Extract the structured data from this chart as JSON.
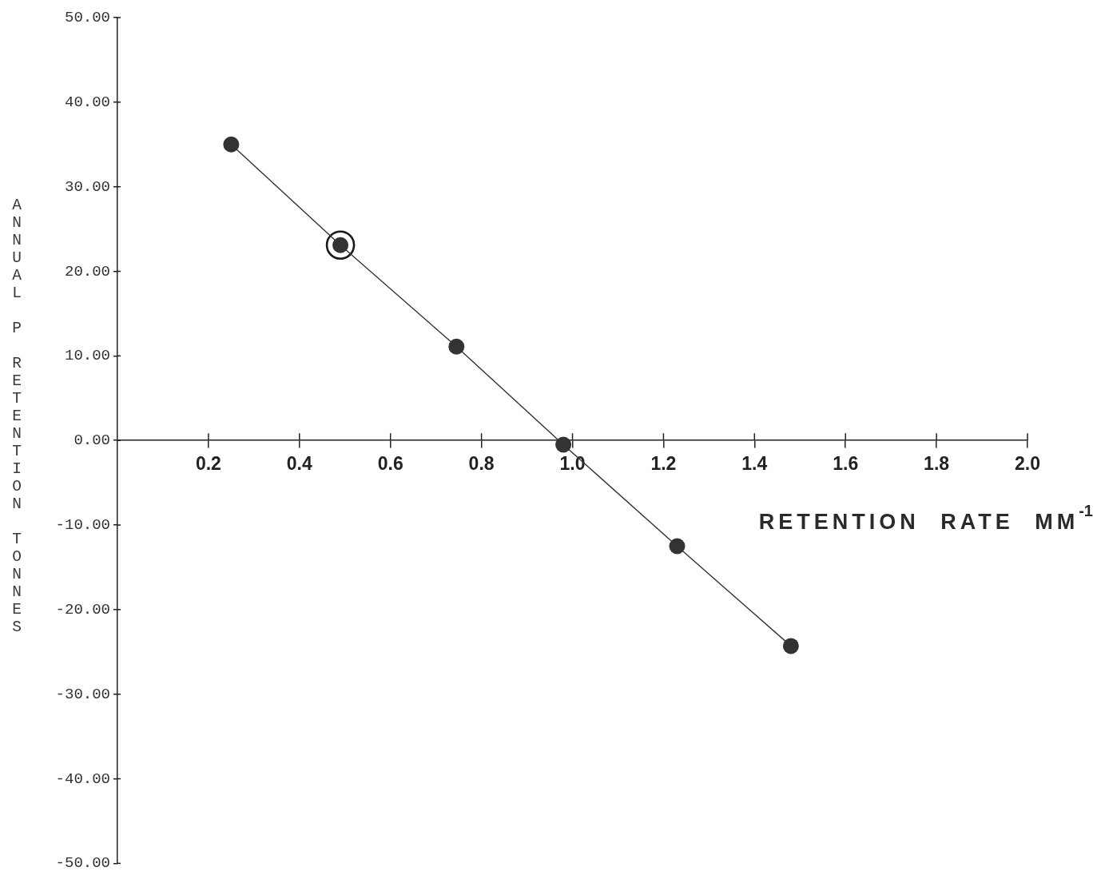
{
  "chart_data": {
    "type": "line",
    "xlabel": "RETENTION RATE MM$^{-1}$",
    "ylabel": "ANNUAL P RETENTION TONNES",
    "x": [
      0.25,
      0.49,
      0.745,
      0.98,
      1.23,
      1.48
    ],
    "series": [
      {
        "type": "line",
        "color": "#333333",
        "values": [
          35.0,
          23.1,
          11.1,
          -0.5,
          -12.5,
          -24.3
        ]
      },
      {
        "type": "scatter",
        "color": "#1a1a1a",
        "x": [
          0.49
        ],
        "values": [
          23.1
        ]
      }
    ],
    "xlim": [
      0,
      2.0
    ],
    "xticks": [
      0.2,
      0.4,
      0.6,
      0.8,
      {
        "value": 1,
        "label": "1.0"
      },
      1.2,
      1.4,
      1.6,
      1.8,
      {
        "value": 2,
        "label": "2.0"
      }
    ],
    "ylim": [
      -50,
      50
    ],
    "yticks": [
      {
        "value": 50,
        "label": "50.00"
      },
      {
        "value": 40,
        "label": "40.00"
      },
      {
        "value": 30,
        "label": "30.00"
      },
      {
        "value": 20,
        "label": "20.00"
      },
      {
        "value": 10,
        "label": "10.00"
      },
      {
        "value": 0,
        "label": "0.00"
      },
      {
        "value": -10,
        "label": "-10.00"
      },
      {
        "value": -20,
        "label": "-20.00"
      },
      {
        "value": -30,
        "label": "-30.00"
      },
      {
        "value": -40,
        "label": "-40.00"
      },
      {
        "value": -50,
        "label": "-50.00"
      }
    ],
    "marker": "circle",
    "line_style": "solid"
  }
}
